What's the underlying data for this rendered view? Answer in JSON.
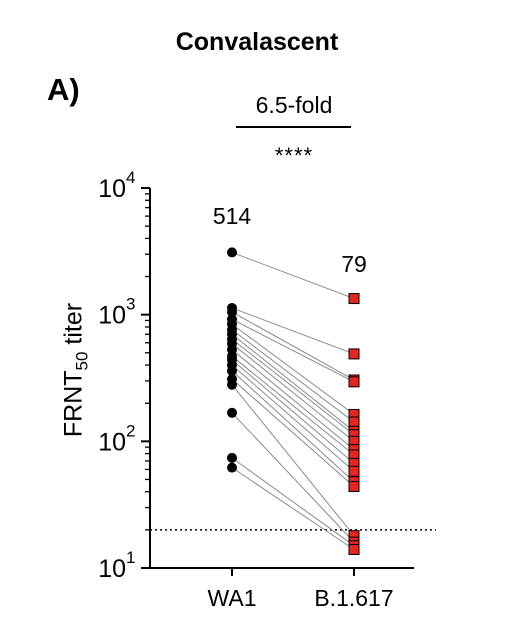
{
  "title": "Convalascent",
  "panel_label": "A)",
  "annotation": {
    "fold_change": "6.5-fold",
    "significance": "****"
  },
  "chart_data": {
    "type": "scatter",
    "style": "paired before-after plot, lines connect each subject",
    "categories": [
      "WA1",
      "B.1.617"
    ],
    "ylabel_main": "FRNT",
    "ylabel_sub": "50",
    "ylabel_suffix": " titer",
    "y_scale": "log10",
    "ylim": [
      10,
      10000
    ],
    "y_ticks": [
      {
        "value": 10,
        "base": "10",
        "exp": "1"
      },
      {
        "value": 100,
        "base": "10",
        "exp": "2"
      },
      {
        "value": 1000,
        "base": "10",
        "exp": "3"
      },
      {
        "value": 10000,
        "base": "10",
        "exp": "4"
      }
    ],
    "limit_of_detection": 20,
    "group_labels": [
      "514",
      "79"
    ],
    "series": [
      {
        "marker": "circle",
        "color": "#000000",
        "values": [
          3100,
          1130,
          1050,
          920,
          840,
          760,
          700,
          640,
          590,
          530,
          470,
          440,
          400,
          360,
          310,
          280,
          168,
          74,
          62
        ]
      },
      {
        "marker": "square",
        "color": "#e8241f",
        "values": [
          1340,
          490,
          305,
          295,
          163,
          142,
          120,
          113,
          100,
          86,
          78,
          67,
          58,
          48,
          44,
          18,
          16,
          15,
          14
        ]
      }
    ],
    "grid": false,
    "legend": "none"
  }
}
